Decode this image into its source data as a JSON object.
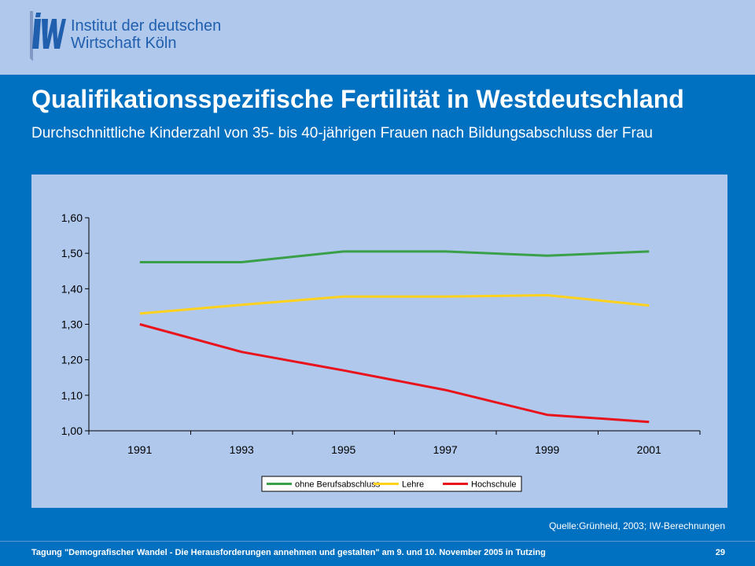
{
  "header": {
    "logo_line1": "Institut der deutschen",
    "logo_line2": "Wirtschaft Köln",
    "logo_icon": "iw-logo-icon"
  },
  "title": "Qualifikationsspezifische Fertilität in Westdeutschland",
  "subtitle": "Durchschnittliche Kinderzahl von 35- bis 40-jährigen Frauen nach Bildungsabschluss der Frau",
  "source": "Quelle:Grünheid,  2003; IW-Berechnungen",
  "footer": {
    "text": "Tagung \"Demografischer Wandel - Die Herausforderungen annehmen und gestalten\" am 9. und 10. November 2005 in Tutzing",
    "page": "29"
  },
  "colors": {
    "background": "#0070c0",
    "panel": "#b0c8ec",
    "ohne": "#3a9f49",
    "lehre": "#ffd21e",
    "hochschule": "#e8131b"
  },
  "chart_data": {
    "type": "line",
    "x": [
      "1991",
      "1993",
      "1995",
      "1997",
      "1999",
      "2001"
    ],
    "series": [
      {
        "name": "ohne Berufsabschluss",
        "values": [
          1.475,
          1.475,
          1.505,
          1.505,
          1.493,
          1.505
        ]
      },
      {
        "name": "Lehre",
        "values": [
          1.33,
          1.355,
          1.378,
          1.378,
          1.382,
          1.353
        ]
      },
      {
        "name": "Hochschule",
        "values": [
          1.3,
          1.222,
          1.17,
          1.115,
          1.045,
          1.025
        ]
      }
    ],
    "ylim": [
      1.0,
      1.6
    ],
    "yticks": [
      "1,00",
      "1,10",
      "1,20",
      "1,30",
      "1,40",
      "1,50",
      "1,60"
    ],
    "grid": false,
    "legend": "bottom"
  }
}
